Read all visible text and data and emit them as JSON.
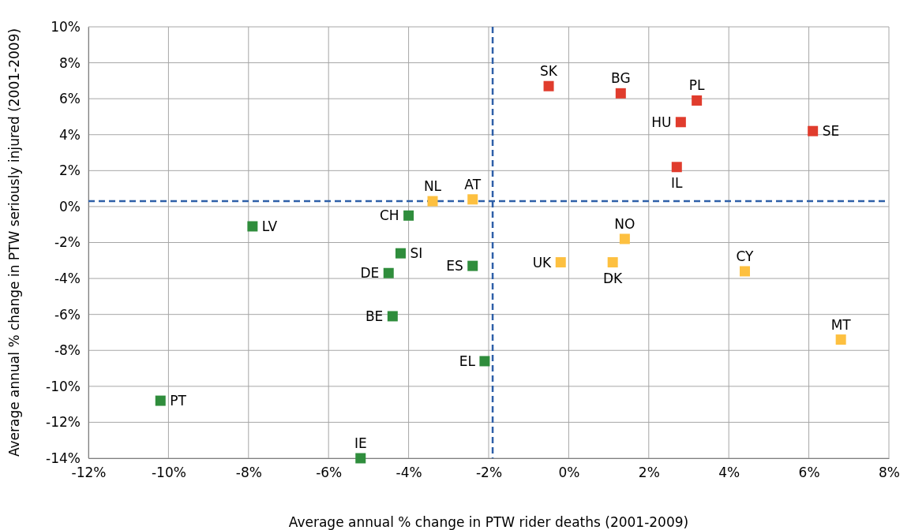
{
  "chart_data": {
    "type": "scatter",
    "xlabel": "Average annual % change in PTW rider deaths (2001-2009)",
    "ylabel": "Average annual % change in PTW seriously injured (2001-2009)",
    "xlim": [
      -12,
      8
    ],
    "xticks": [
      {
        "value": -12,
        "label": "-12%"
      },
      {
        "value": -10,
        "label": "-10%"
      },
      {
        "value": -8,
        "label": "-8%"
      },
      {
        "value": -6,
        "label": "-6%"
      },
      {
        "value": -4,
        "label": "-4%"
      },
      {
        "value": -2,
        "label": "-2%"
      },
      {
        "value": 0,
        "label": "0%"
      },
      {
        "value": 2,
        "label": "2%"
      },
      {
        "value": 4,
        "label": "4%"
      },
      {
        "value": 6,
        "label": "6%"
      },
      {
        "value": 8,
        "label": "8%"
      }
    ],
    "ylim": [
      -14,
      10
    ],
    "yticks": [
      {
        "value": -14,
        "label": "-14%"
      },
      {
        "value": -12,
        "label": "-12%"
      },
      {
        "value": -10,
        "label": "-10%"
      },
      {
        "value": -8,
        "label": "-8%"
      },
      {
        "value": -6,
        "label": "-6%"
      },
      {
        "value": -4,
        "label": "-4%"
      },
      {
        "value": -2,
        "label": "-2%"
      },
      {
        "value": 0,
        "label": "0%"
      },
      {
        "value": 2,
        "label": "2%"
      },
      {
        "value": 4,
        "label": "4%"
      },
      {
        "value": 6,
        "label": "6%"
      },
      {
        "value": 8,
        "label": "8%"
      },
      {
        "value": 10,
        "label": "10%"
      }
    ],
    "grid": true,
    "marker": "square",
    "series": [
      {
        "color": "#e03c2d",
        "x": [
          -0.5,
          1.3,
          3.2,
          2.8,
          6.1,
          2.7
        ],
        "values": [
          6.7,
          6.3,
          5.9,
          4.7,
          4.2,
          2.2
        ]
      },
      {
        "color": "#fdc040",
        "x": [
          -3.4,
          -2.4,
          1.4,
          -0.2,
          1.1,
          4.4,
          6.8
        ],
        "values": [
          0.3,
          0.4,
          -1.8,
          -3.1,
          -3.1,
          -3.6,
          -7.4
        ]
      },
      {
        "color": "#2f8d3c",
        "x": [
          -4.0,
          -7.9,
          -4.2,
          -2.4,
          -4.5,
          -4.4,
          -2.1,
          -10.2,
          -5.2
        ],
        "values": [
          -0.5,
          -1.1,
          -2.6,
          -3.3,
          -3.7,
          -6.1,
          -8.6,
          -10.8,
          -14
        ]
      }
    ],
    "ref_lines": [
      {
        "axis": "x",
        "value": -1.9,
        "color": "#2e5fa8",
        "line_style": "dashed"
      },
      {
        "axis": "y",
        "value": 0.3,
        "color": "#2e5fa8",
        "line_style": "dashed"
      }
    ],
    "annotations": [
      {
        "text": "SK",
        "x": -0.5,
        "y": 6.7
      },
      {
        "text": "BG",
        "x": 1.3,
        "y": 6.3
      },
      {
        "text": "PL",
        "x": 3.2,
        "y": 5.9
      },
      {
        "text": "HU",
        "x": 2.8,
        "y": 4.7
      },
      {
        "text": "SE",
        "x": 6.1,
        "y": 4.2
      },
      {
        "text": "IL",
        "x": 2.7,
        "y": 2.2
      },
      {
        "text": "NL",
        "x": -3.4,
        "y": 0.3
      },
      {
        "text": "AT",
        "x": -2.4,
        "y": 0.4
      },
      {
        "text": "NO",
        "x": 1.4,
        "y": -1.8
      },
      {
        "text": "UK",
        "x": -0.2,
        "y": -3.1
      },
      {
        "text": "DK",
        "x": 1.1,
        "y": -3.1
      },
      {
        "text": "CY",
        "x": 4.4,
        "y": -3.6
      },
      {
        "text": "MT",
        "x": 6.8,
        "y": -7.4
      },
      {
        "text": "CH",
        "x": -4.0,
        "y": -0.5
      },
      {
        "text": "LV",
        "x": -7.9,
        "y": -1.1
      },
      {
        "text": "SI",
        "x": -4.2,
        "y": -2.6
      },
      {
        "text": "ES",
        "x": -2.4,
        "y": -3.3
      },
      {
        "text": "DE",
        "x": -4.5,
        "y": -3.7
      },
      {
        "text": "BE",
        "x": -4.4,
        "y": -6.1
      },
      {
        "text": "EL",
        "x": -2.1,
        "y": -8.6
      },
      {
        "text": "PT",
        "x": -10.2,
        "y": -10.8
      },
      {
        "text": "IE",
        "x": -5.2,
        "y": -14
      }
    ]
  }
}
